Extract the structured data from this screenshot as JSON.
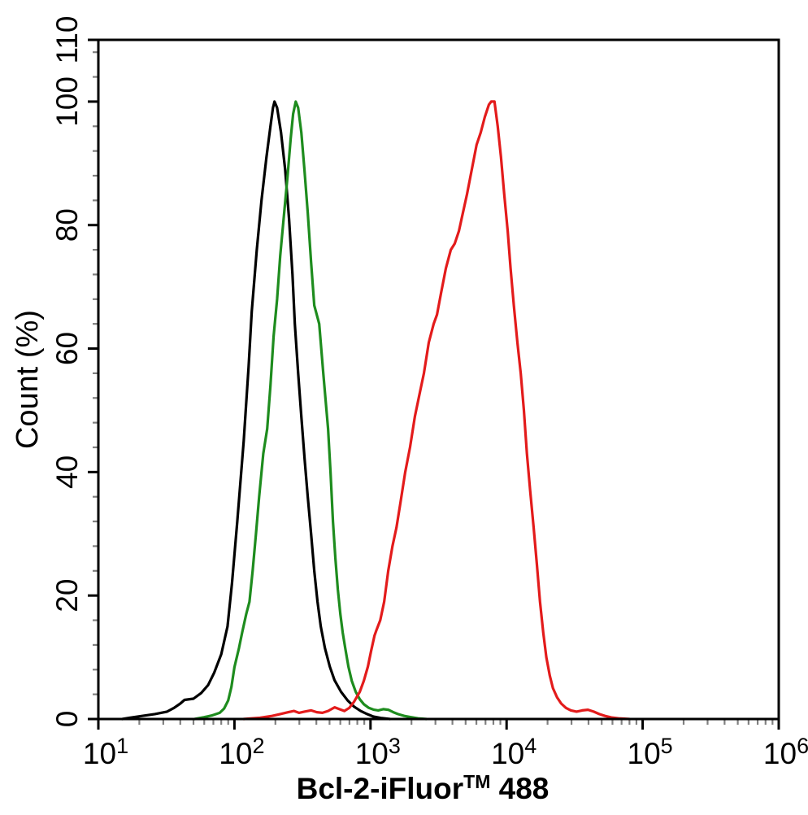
{
  "figure": {
    "background": "#ffffff"
  },
  "chart_data": {
    "type": "line",
    "subtype": "flow-cytometry-histogram-overlay",
    "title": "",
    "xlabel": "Bcl-2-iFluor™ 488",
    "xlabel_parts": {
      "main": "Bcl-2-iFluor",
      "superscript": "TM",
      "suffix": " 488"
    },
    "ylabel": "Count  (%)",
    "grid": false,
    "legend": "none",
    "frame_color": "#000000",
    "minor_tick_color": "#808080",
    "x_axis": {
      "scale": "log10",
      "min": 10,
      "max": 1000000,
      "tick_label_base": "10",
      "major_tick_exponents": [
        1,
        2,
        3,
        4,
        5,
        6
      ],
      "minor_tick_mantissas": [
        2,
        3,
        4,
        5,
        6,
        7,
        8,
        9
      ]
    },
    "y_axis": {
      "scale": "linear",
      "min": 0,
      "max": 110,
      "major_ticks": [
        0,
        20,
        40,
        60,
        80,
        100,
        110
      ],
      "minor_tick_step": 4
    },
    "series": [
      {
        "name": "black",
        "color": "#000000",
        "peak": {
          "x": 197,
          "y": 100
        },
        "points": [
          [
            15,
            0
          ],
          [
            17,
            0.2
          ],
          [
            21,
            0.5
          ],
          [
            26,
            0.8
          ],
          [
            32,
            1.2
          ],
          [
            36,
            1.8
          ],
          [
            40,
            2.5
          ],
          [
            43,
            3.1
          ],
          [
            50,
            3.3
          ],
          [
            57,
            4.2
          ],
          [
            64,
            5.5
          ],
          [
            71,
            7.5
          ],
          [
            80,
            10.5
          ],
          [
            89,
            15
          ],
          [
            96,
            22
          ],
          [
            105,
            32
          ],
          [
            117,
            45
          ],
          [
            127,
            57
          ],
          [
            134,
            66
          ],
          [
            146,
            76
          ],
          [
            158,
            84
          ],
          [
            172,
            91
          ],
          [
            184,
            96
          ],
          [
            192,
            99
          ],
          [
            197,
            100
          ],
          [
            206,
            99
          ],
          [
            220,
            95
          ],
          [
            236,
            89
          ],
          [
            252,
            81
          ],
          [
            267,
            72
          ],
          [
            278,
            64
          ],
          [
            294,
            56
          ],
          [
            310,
            49
          ],
          [
            328,
            42
          ],
          [
            346,
            36
          ],
          [
            366,
            30
          ],
          [
            386,
            24
          ],
          [
            408,
            19
          ],
          [
            431,
            15
          ],
          [
            462,
            11.5
          ],
          [
            502,
            8.5
          ],
          [
            544,
            6.3
          ],
          [
            608,
            4.4
          ],
          [
            679,
            3
          ],
          [
            757,
            2
          ],
          [
            845,
            1.3
          ],
          [
            944,
            0.8
          ],
          [
            1050,
            0.4
          ],
          [
            1210,
            0.15
          ],
          [
            1390,
            0
          ]
        ]
      },
      {
        "name": "green",
        "color": "#1e8c1e",
        "peak": {
          "x": 282,
          "y": 100
        },
        "points": [
          [
            51,
            0
          ],
          [
            60,
            0.3
          ],
          [
            69,
            0.6
          ],
          [
            78,
            1
          ],
          [
            84,
            1.7
          ],
          [
            90,
            3
          ],
          [
            95,
            5.2
          ],
          [
            100,
            8.4
          ],
          [
            108,
            11.5
          ],
          [
            114,
            14
          ],
          [
            122,
            17
          ],
          [
            129,
            19
          ],
          [
            136,
            24
          ],
          [
            144,
            30
          ],
          [
            152,
            36
          ],
          [
            163,
            43
          ],
          [
            174,
            47
          ],
          [
            184,
            54
          ],
          [
            194,
            62
          ],
          [
            206,
            68
          ],
          [
            217,
            75
          ],
          [
            232,
            82
          ],
          [
            246,
            88
          ],
          [
            259,
            94
          ],
          [
            270,
            98
          ],
          [
            282,
            100
          ],
          [
            294,
            99
          ],
          [
            310,
            95
          ],
          [
            327,
            89
          ],
          [
            346,
            82
          ],
          [
            366,
            74
          ],
          [
            386,
            67
          ],
          [
            420,
            64
          ],
          [
            450,
            56
          ],
          [
            488,
            47
          ],
          [
            508,
            40
          ],
          [
            530,
            32
          ],
          [
            552,
            26
          ],
          [
            575,
            21
          ],
          [
            600,
            17
          ],
          [
            625,
            14
          ],
          [
            652,
            11.5
          ],
          [
            688,
            8.5
          ],
          [
            728,
            6.2
          ],
          [
            779,
            4.4
          ],
          [
            834,
            3.2
          ],
          [
            893,
            2.4
          ],
          [
            971,
            1.8
          ],
          [
            1060,
            1.5
          ],
          [
            1140,
            1.4
          ],
          [
            1240,
            1.6
          ],
          [
            1350,
            1.5
          ],
          [
            1470,
            1.1
          ],
          [
            1590,
            0.8
          ],
          [
            1770,
            0.5
          ],
          [
            1980,
            0.3
          ],
          [
            2240,
            0.1
          ],
          [
            2570,
            0
          ]
        ]
      },
      {
        "name": "red",
        "color": "#e31b1b",
        "peak": {
          "x": 8000,
          "y": 100
        },
        "points": [
          [
            117,
            0
          ],
          [
            154,
            0.2
          ],
          [
            189,
            0.5
          ],
          [
            217,
            0.8
          ],
          [
            249,
            1.1
          ],
          [
            274,
            1.3
          ],
          [
            298,
            1
          ],
          [
            327,
            1.2
          ],
          [
            366,
            1.4
          ],
          [
            403,
            1.1
          ],
          [
            443,
            1
          ],
          [
            488,
            1.3
          ],
          [
            545,
            1.9
          ],
          [
            591,
            1.6
          ],
          [
            642,
            1.3
          ],
          [
            698,
            1.8
          ],
          [
            757,
            2.8
          ],
          [
            834,
            4.4
          ],
          [
            893,
            6.2
          ],
          [
            957,
            8.5
          ],
          [
            1010,
            11
          ],
          [
            1070,
            13.5
          ],
          [
            1110,
            14.5
          ],
          [
            1180,
            16
          ],
          [
            1260,
            19
          ],
          [
            1350,
            24
          ],
          [
            1450,
            28
          ],
          [
            1550,
            31
          ],
          [
            1660,
            35
          ],
          [
            1800,
            40
          ],
          [
            1950,
            44
          ],
          [
            2120,
            49
          ],
          [
            2310,
            53
          ],
          [
            2470,
            56
          ],
          [
            2680,
            61
          ],
          [
            2910,
            64
          ],
          [
            3080,
            65.5
          ],
          [
            3300,
            69
          ],
          [
            3580,
            73
          ],
          [
            3890,
            76
          ],
          [
            4160,
            77
          ],
          [
            4460,
            79
          ],
          [
            4780,
            82
          ],
          [
            5120,
            85
          ],
          [
            5550,
            89
          ],
          [
            6020,
            93
          ],
          [
            6460,
            95
          ],
          [
            6920,
            97.5
          ],
          [
            7410,
            99.5
          ],
          [
            7710,
            100
          ],
          [
            8150,
            100
          ],
          [
            8610,
            96
          ],
          [
            9100,
            91
          ],
          [
            9610,
            85
          ],
          [
            10200,
            79
          ],
          [
            10700,
            73
          ],
          [
            11300,
            67
          ],
          [
            12000,
            61
          ],
          [
            12700,
            56
          ],
          [
            13400,
            50
          ],
          [
            14100,
            43
          ],
          [
            14900,
            37
          ],
          [
            15800,
            31
          ],
          [
            16700,
            25
          ],
          [
            17600,
            19
          ],
          [
            18600,
            14
          ],
          [
            19600,
            10
          ],
          [
            20800,
            7
          ],
          [
            21900,
            5
          ],
          [
            23500,
            3.5
          ],
          [
            25200,
            2.5
          ],
          [
            27300,
            1.8
          ],
          [
            29700,
            1.4
          ],
          [
            32700,
            1.2
          ],
          [
            36000,
            1.4
          ],
          [
            39600,
            1.5
          ],
          [
            43600,
            1.2
          ],
          [
            48000,
            0.8
          ],
          [
            52800,
            0.5
          ],
          [
            59000,
            0.25
          ],
          [
            66800,
            0.1
          ],
          [
            79900,
            0
          ]
        ]
      }
    ]
  }
}
